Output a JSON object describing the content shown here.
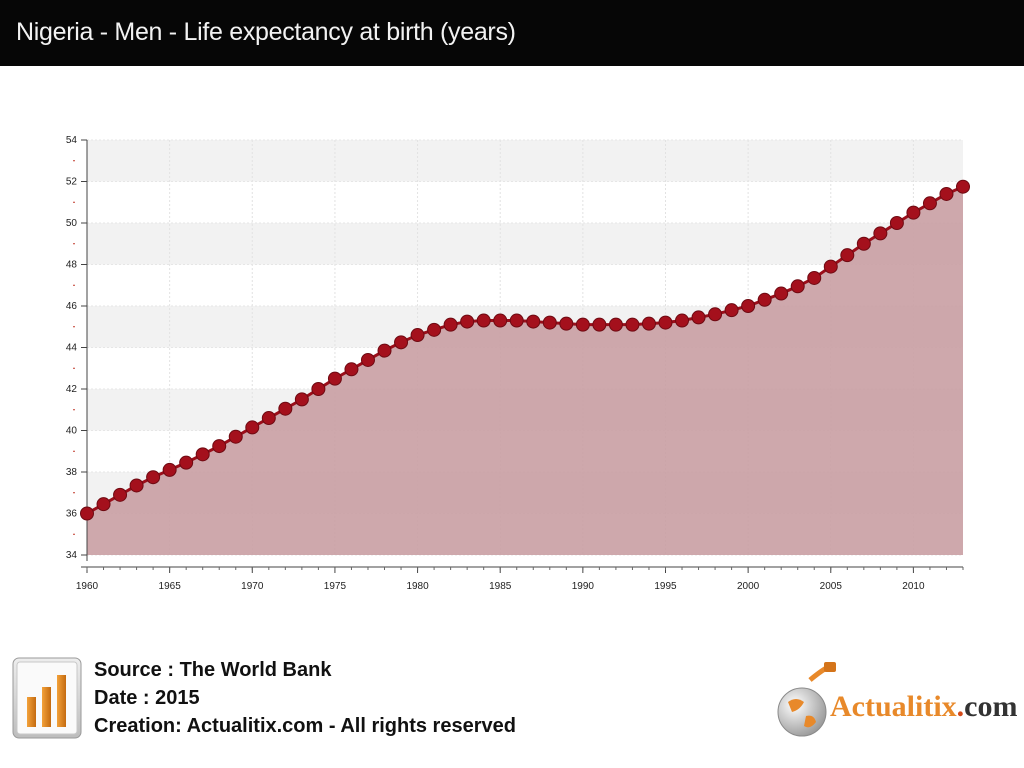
{
  "header": {
    "title": "Nigeria - Men - Life expectancy at birth (years)"
  },
  "chart_data": {
    "type": "area",
    "title": "Nigeria - Men - Life expectancy at birth (years)",
    "xlabel": "",
    "ylabel": "",
    "xlim": [
      1960,
      2013
    ],
    "ylim": [
      34,
      54
    ],
    "x_ticks": [
      1960,
      1965,
      1970,
      1975,
      1980,
      1985,
      1990,
      1995,
      2000,
      2005,
      2010
    ],
    "y_ticks": [
      34,
      36,
      38,
      40,
      42,
      44,
      46,
      48,
      50,
      52,
      54
    ],
    "grid": true,
    "legend": "none",
    "colors": {
      "line": "#9b0e1a",
      "fill": "#c99ea3",
      "marker": "#a4101c"
    },
    "series": [
      {
        "name": "Life expectancy at birth (years)",
        "x": [
          1960,
          1961,
          1962,
          1963,
          1964,
          1965,
          1966,
          1967,
          1968,
          1969,
          1970,
          1971,
          1972,
          1973,
          1974,
          1975,
          1976,
          1977,
          1978,
          1979,
          1980,
          1981,
          1982,
          1983,
          1984,
          1985,
          1986,
          1987,
          1988,
          1989,
          1990,
          1991,
          1992,
          1993,
          1994,
          1995,
          1996,
          1997,
          1998,
          1999,
          2000,
          2001,
          2002,
          2003,
          2004,
          2005,
          2006,
          2007,
          2008,
          2009,
          2010,
          2011,
          2012,
          2013
        ],
        "values": [
          36.0,
          36.45,
          36.9,
          37.35,
          37.75,
          38.1,
          38.45,
          38.85,
          39.25,
          39.7,
          40.15,
          40.6,
          41.05,
          41.5,
          42.0,
          42.5,
          42.95,
          43.4,
          43.85,
          44.25,
          44.6,
          44.85,
          45.1,
          45.25,
          45.3,
          45.3,
          45.3,
          45.25,
          45.2,
          45.15,
          45.1,
          45.1,
          45.1,
          45.1,
          45.15,
          45.2,
          45.3,
          45.45,
          45.6,
          45.8,
          46.0,
          46.3,
          46.6,
          46.95,
          47.35,
          47.9,
          48.45,
          49.0,
          49.5,
          50.0,
          50.5,
          50.95,
          51.4,
          51.75
        ]
      }
    ]
  },
  "footer": {
    "source": "Source : The World Bank",
    "date": "Date : 2015",
    "creation": "Creation: Actualitix.com - All rights reserved"
  },
  "logo": {
    "name": "Actualitix",
    "dot": ".",
    "domain": "com"
  }
}
